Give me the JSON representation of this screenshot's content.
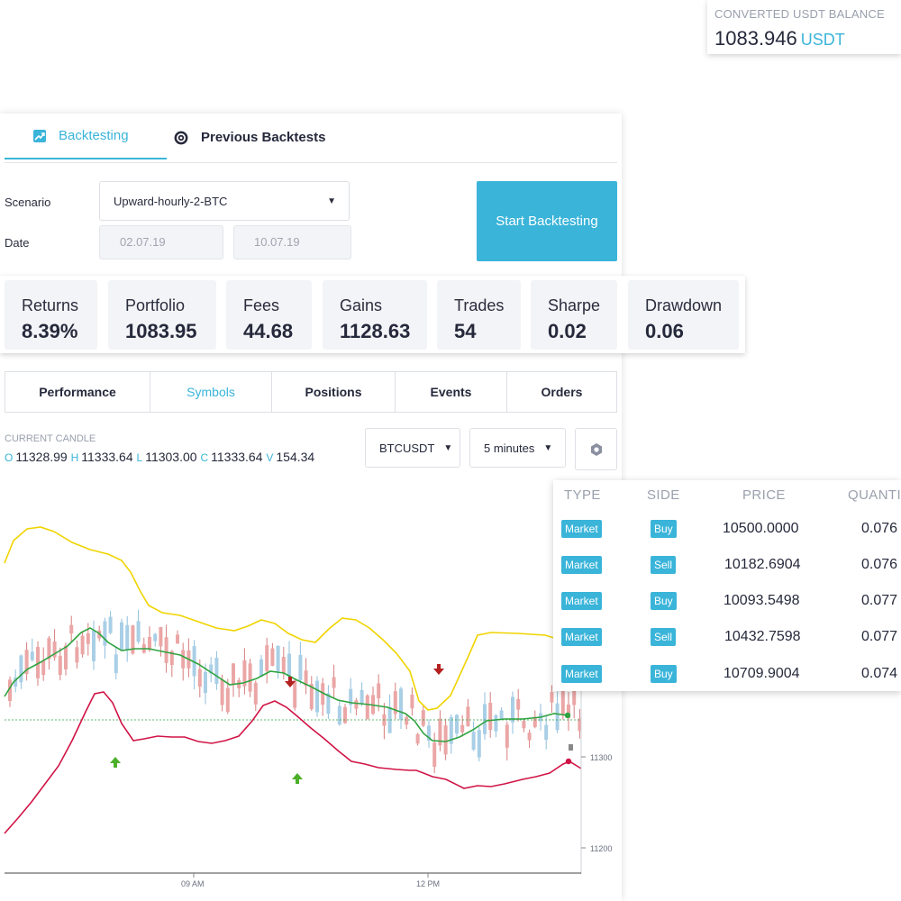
{
  "balance": {
    "label": "CONVERTED USDT BALANCE",
    "value": "1083.946",
    "currency": "USDT"
  },
  "tabs": [
    {
      "label": "Backtesting",
      "icon": "chart-icon",
      "active": true
    },
    {
      "label": "Previous Backtests",
      "icon": "history-icon",
      "active": false
    }
  ],
  "form": {
    "scenario_label": "Scenario",
    "scenario_value": "Upward-hourly-2-BTC",
    "date_label": "Date",
    "date_from": "02.07.19",
    "date_to": "10.07.19",
    "start_label": "Start Backtesting"
  },
  "stats": [
    {
      "title": "Returns",
      "value": "8.39%"
    },
    {
      "title": "Portfolio",
      "value": "1083.95"
    },
    {
      "title": "Fees",
      "value": "44.68"
    },
    {
      "title": "Gains",
      "value": "1128.63"
    },
    {
      "title": "Trades",
      "value": "54"
    },
    {
      "title": "Sharpe",
      "value": "0.02"
    },
    {
      "title": "Drawdown",
      "value": "0.06"
    }
  ],
  "subtabs": [
    "Performance",
    "Symbols",
    "Positions",
    "Events",
    "Orders"
  ],
  "active_subtab": "Symbols",
  "candle": {
    "label": "CURRENT CANDLE",
    "o_key": "O",
    "o": "11328.99",
    "h_key": "H",
    "h": "11333.64",
    "l_key": "L",
    "l": "11303.00",
    "c_key": "C",
    "c": "11333.64",
    "v_key": "V",
    "v": "154.34"
  },
  "symbol": "BTCUSDT",
  "interval": "5 minutes",
  "colors": {
    "accent": "#3ab4d9",
    "up": "#a9cfe6",
    "down": "#eba6a6",
    "upper_band": "#f0d400",
    "mid_band": "#2ea33f",
    "lower_band": "#d01446"
  },
  "chart_data": {
    "type": "line",
    "y_ticks": [
      "11300",
      "11200"
    ],
    "x_ticks": [
      "09 AM",
      "12 PM"
    ]
  },
  "trades": {
    "headers": [
      "TYPE",
      "SIDE",
      "PRICE",
      "QUANTITY"
    ],
    "rows": [
      {
        "type": "Market",
        "side": "Buy",
        "price": "10500.0000",
        "qty": "0.076"
      },
      {
        "type": "Market",
        "side": "Sell",
        "price": "10182.6904",
        "qty": "0.076"
      },
      {
        "type": "Market",
        "side": "Buy",
        "price": "10093.5498",
        "qty": "0.077"
      },
      {
        "type": "Market",
        "side": "Sell",
        "price": "10432.7598",
        "qty": "0.077"
      },
      {
        "type": "Market",
        "side": "Buy",
        "price": "10709.9004",
        "qty": "0.074"
      }
    ]
  }
}
